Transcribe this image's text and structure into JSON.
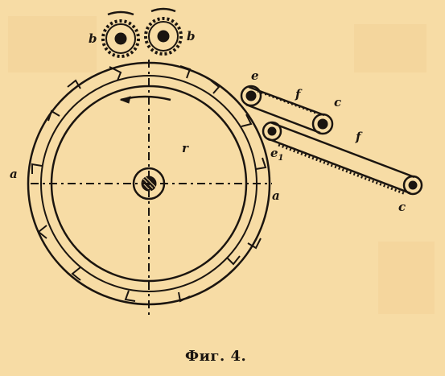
{
  "figure": {
    "caption": "Фиг. 4.",
    "colors": {
      "paper": "#f7dca5",
      "ink": "#1b1510",
      "stain": "#f1cf95"
    },
    "labels": {
      "gear_left": "b",
      "gear_right": "b",
      "drum_center": "r",
      "axis_left": "a",
      "axis_right": "a",
      "roller_upper_left": "e",
      "roller_upper_right": "c",
      "belt_upper": "f",
      "roller_lower_left": "e",
      "roller_lower_subscript": "1",
      "belt_lower": "f",
      "roller_lower_right": "c"
    }
  }
}
